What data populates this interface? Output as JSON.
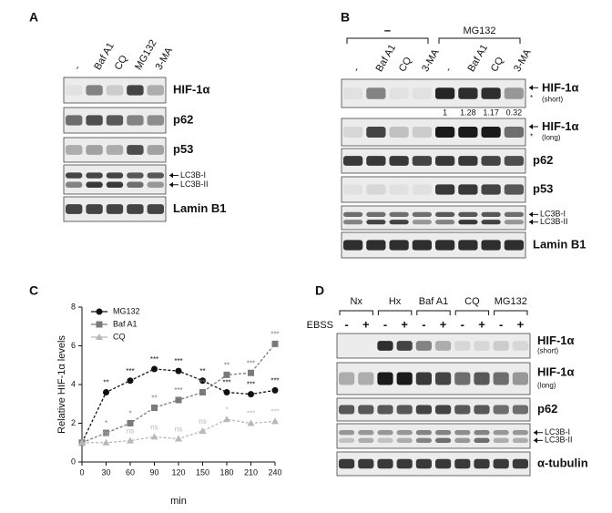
{
  "panels": {
    "A": {
      "label": "A",
      "lanes": [
        "-",
        "Baf A1",
        "CQ",
        "MG132",
        "3-MA"
      ],
      "blots": [
        {
          "label": "HIF-1α"
        },
        {
          "label": "p62"
        },
        {
          "label": "p53"
        },
        {
          "markers": [
            "LC3B-I",
            "LC3B-II"
          ]
        },
        {
          "label": "Lamin B1"
        }
      ]
    },
    "B": {
      "label": "B",
      "groups": [
        "–",
        "MG132"
      ],
      "lanes": [
        "-",
        "Baf A1",
        "CQ",
        "3-MA",
        "-",
        "Baf A1",
        "CQ",
        "3-MA"
      ],
      "quantification": [
        1,
        1.28,
        1.17,
        0.32
      ],
      "blots": [
        {
          "label": "HIF-1α",
          "sublabel": "(short)",
          "note": "*"
        },
        {
          "label": "HIF-1α",
          "sublabel": "(long)",
          "note": "*"
        },
        {
          "label": "p62"
        },
        {
          "label": "p53"
        },
        {
          "markers": [
            "LC3B-I",
            "LC3B-II"
          ]
        },
        {
          "label": "Lamin B1"
        }
      ]
    },
    "D": {
      "label": "D",
      "groups": [
        "Nx",
        "Hx",
        "Baf A1",
        "CQ",
        "MG132"
      ],
      "treatment": "EBSS",
      "treatment_levels": [
        "-",
        "+"
      ],
      "blots": [
        {
          "label": "HIF-1α",
          "sublabel": "(short)"
        },
        {
          "label": "HIF-1α",
          "sublabel": "(long)"
        },
        {
          "label": "p62"
        },
        {
          "markers": [
            "LC3B-I",
            "LC3B-II"
          ]
        },
        {
          "label": "α-tubulin"
        }
      ]
    }
  },
  "chart_data": {
    "type": "line",
    "panel": "C",
    "xlabel": "min",
    "ylabel": "Relative HIF-1α levels",
    "x": [
      0,
      30,
      60,
      90,
      120,
      150,
      180,
      210,
      240
    ],
    "xlim": [
      0,
      240
    ],
    "ylim": [
      0,
      8
    ],
    "xticks": [
      0,
      30,
      60,
      90,
      120,
      150,
      180,
      210,
      240
    ],
    "yticks": [
      0,
      2,
      4,
      6,
      8
    ],
    "legend": "upper left",
    "series": [
      {
        "name": "MG132",
        "color": "#111111",
        "marker": "circle",
        "values": [
          1,
          3.6,
          4.2,
          4.8,
          4.7,
          4.2,
          3.6,
          3.5,
          3.7
        ],
        "annotations": [
          null,
          "**",
          "***",
          "***",
          "***",
          "**",
          "***",
          "***",
          "***"
        ]
      },
      {
        "name": "Baf A1",
        "color": "#7a7a7a",
        "marker": "square",
        "values": [
          1,
          1.5,
          2.0,
          2.8,
          3.2,
          3.6,
          4.5,
          4.6,
          6.1
        ],
        "annotations": [
          null,
          "*",
          "*",
          "**",
          "***",
          "**",
          "**",
          "***",
          "***"
        ]
      },
      {
        "name": "CQ",
        "color": "#b8b8b8",
        "marker": "triangle",
        "values": [
          1,
          1.0,
          1.1,
          1.3,
          1.2,
          1.6,
          2.2,
          2.0,
          2.1
        ],
        "annotations": [
          null,
          "ns",
          "ns",
          "ns",
          "ns",
          "ns",
          "*",
          "***",
          "***"
        ]
      }
    ]
  }
}
